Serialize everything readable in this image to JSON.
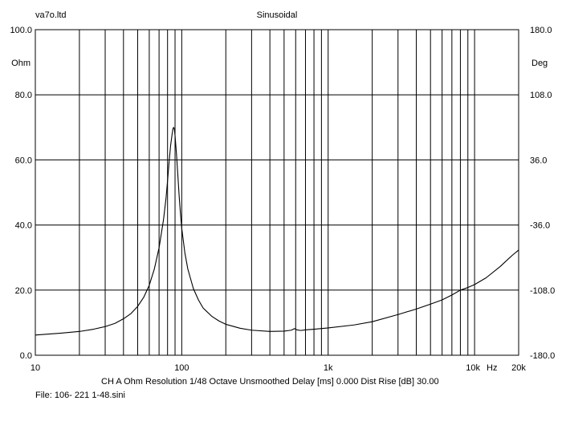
{
  "header": {
    "left_text": "va7o.ltd",
    "title": "Sinusoidal"
  },
  "footer": {
    "settings_text": "CH A   Ohm   Resolution 1/48 Octave   Unsmoothed   Delay [ms] 0.000   Dist Rise [dB] 30.00",
    "file_text": "File: 106- 221 1-48.sini"
  },
  "chart_data": {
    "type": "line",
    "title": "Sinusoidal",
    "x_scale": "log",
    "xlim": [
      10,
      20000
    ],
    "x_tick_labels": [
      {
        "value": 10,
        "label": "10"
      },
      {
        "value": 100,
        "label": "100"
      },
      {
        "value": 1000,
        "label": "1k"
      },
      {
        "value": 10000,
        "label": "10k"
      },
      {
        "value": 20000,
        "label": "20k"
      }
    ],
    "x_unit": "Hz",
    "y_left": {
      "unit": "Ohm",
      "range": [
        0,
        100
      ],
      "tick_labels": [
        "0.0",
        "20.0",
        "40.0",
        "60.0",
        "80.0",
        "100.0"
      ]
    },
    "y_right": {
      "unit": "Deg",
      "range": [
        -180,
        180
      ],
      "tick_labels": [
        "-180.0",
        "-108.0",
        "-36.0",
        "36.0",
        "108.0",
        "180.0"
      ]
    },
    "grid": true,
    "series": [
      {
        "axis": "left",
        "color": "#000000",
        "points": [
          [
            10,
            6.2
          ],
          [
            15,
            6.8
          ],
          [
            20,
            7.3
          ],
          [
            25,
            8.0
          ],
          [
            30,
            8.8
          ],
          [
            35,
            9.8
          ],
          [
            40,
            11.2
          ],
          [
            45,
            12.8
          ],
          [
            50,
            15.0
          ],
          [
            55,
            17.8
          ],
          [
            60,
            21.5
          ],
          [
            65,
            26.5
          ],
          [
            70,
            33.0
          ],
          [
            75,
            41.5
          ],
          [
            78,
            48.0
          ],
          [
            80,
            53.5
          ],
          [
            82,
            59.5
          ],
          [
            84,
            64.5
          ],
          [
            86,
            68.0
          ],
          [
            87,
            69.5
          ],
          [
            88,
            70.0
          ],
          [
            89,
            69.5
          ],
          [
            90,
            67.5
          ],
          [
            92,
            62.0
          ],
          [
            94,
            55.5
          ],
          [
            96,
            49.0
          ],
          [
            98,
            43.5
          ],
          [
            100,
            39.0
          ],
          [
            105,
            31.5
          ],
          [
            110,
            26.5
          ],
          [
            120,
            20.5
          ],
          [
            130,
            17.0
          ],
          [
            140,
            14.5
          ],
          [
            160,
            12.0
          ],
          [
            180,
            10.5
          ],
          [
            200,
            9.5
          ],
          [
            250,
            8.3
          ],
          [
            300,
            7.7
          ],
          [
            400,
            7.3
          ],
          [
            500,
            7.4
          ],
          [
            560,
            7.7
          ],
          [
            590,
            8.2
          ],
          [
            610,
            7.8
          ],
          [
            650,
            7.6
          ],
          [
            700,
            7.8
          ],
          [
            800,
            8.0
          ],
          [
            1000,
            8.4
          ],
          [
            1500,
            9.3
          ],
          [
            2000,
            10.3
          ],
          [
            3000,
            12.5
          ],
          [
            4000,
            14.2
          ],
          [
            5000,
            15.7
          ],
          [
            6000,
            17.0
          ],
          [
            7000,
            18.5
          ],
          [
            8000,
            20.0
          ],
          [
            9000,
            20.8
          ],
          [
            10000,
            21.7
          ],
          [
            12000,
            23.8
          ],
          [
            15000,
            27.3
          ],
          [
            18000,
            30.6
          ],
          [
            20000,
            32.3
          ]
        ]
      }
    ]
  }
}
